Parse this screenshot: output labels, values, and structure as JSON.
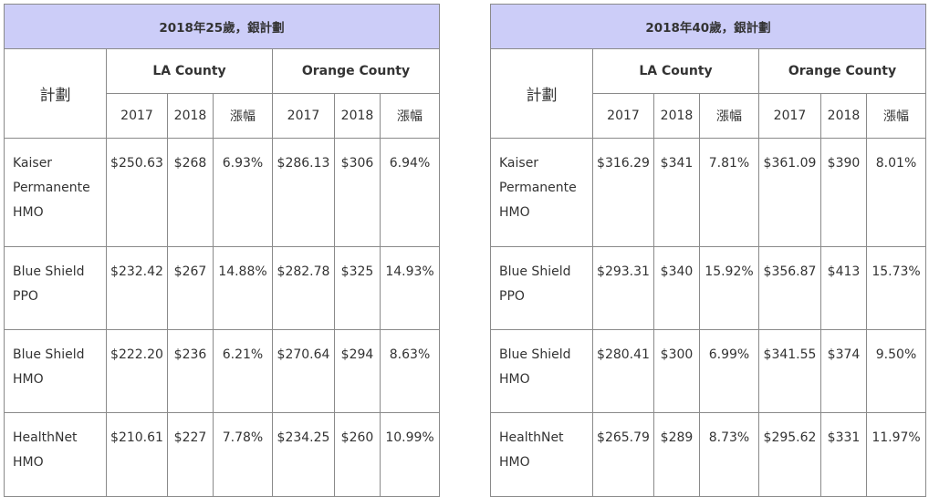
{
  "plan_header": "計劃",
  "county_headers": [
    "LA County",
    "Orange County"
  ],
  "year_headers": [
    "2017",
    "2018",
    "漲幅"
  ],
  "tables": [
    {
      "title": "2018年25歲，銀計劃",
      "rows": [
        {
          "plan": [
            "Kaiser",
            "Permanente",
            "HMO"
          ],
          "la": [
            "$250.63",
            "$268",
            "6.93%"
          ],
          "oc": [
            "$286.13",
            "$306",
            "6.94%"
          ]
        },
        {
          "plan": [
            "Blue Shield",
            "PPO"
          ],
          "la": [
            "$232.42",
            "$267",
            "14.88%"
          ],
          "oc": [
            "$282.78",
            "$325",
            "14.93%"
          ]
        },
        {
          "plan": [
            "Blue Shield",
            "HMO"
          ],
          "la": [
            "$222.20",
            "$236",
            "6.21%"
          ],
          "oc": [
            "$270.64",
            "$294",
            "8.63%"
          ]
        },
        {
          "plan": [
            "HealthNet",
            "HMO"
          ],
          "la": [
            "$210.61",
            "$227",
            "7.78%"
          ],
          "oc": [
            "$234.25",
            "$260",
            "10.99%"
          ]
        }
      ]
    },
    {
      "title": "2018年40歲，銀計劃",
      "rows": [
        {
          "plan": [
            "Kaiser",
            "Permanente",
            "HMO"
          ],
          "la": [
            "$316.29",
            "$341",
            "7.81%"
          ],
          "oc": [
            "$361.09",
            "$390",
            "8.01%"
          ]
        },
        {
          "plan": [
            "Blue Shield",
            "PPO"
          ],
          "la": [
            "$293.31",
            "$340",
            "15.92%"
          ],
          "oc": [
            "$356.87",
            "$413",
            "15.73%"
          ]
        },
        {
          "plan": [
            "Blue Shield",
            "HMO"
          ],
          "la": [
            "$280.41",
            "$300",
            "6.99%"
          ],
          "oc": [
            "$341.55",
            "$374",
            "9.50%"
          ]
        },
        {
          "plan": [
            "HealthNet",
            "HMO"
          ],
          "la": [
            "$265.79",
            "$289",
            "8.73%"
          ],
          "oc": [
            "$295.62",
            "$331",
            "11.97%"
          ]
        }
      ]
    }
  ]
}
